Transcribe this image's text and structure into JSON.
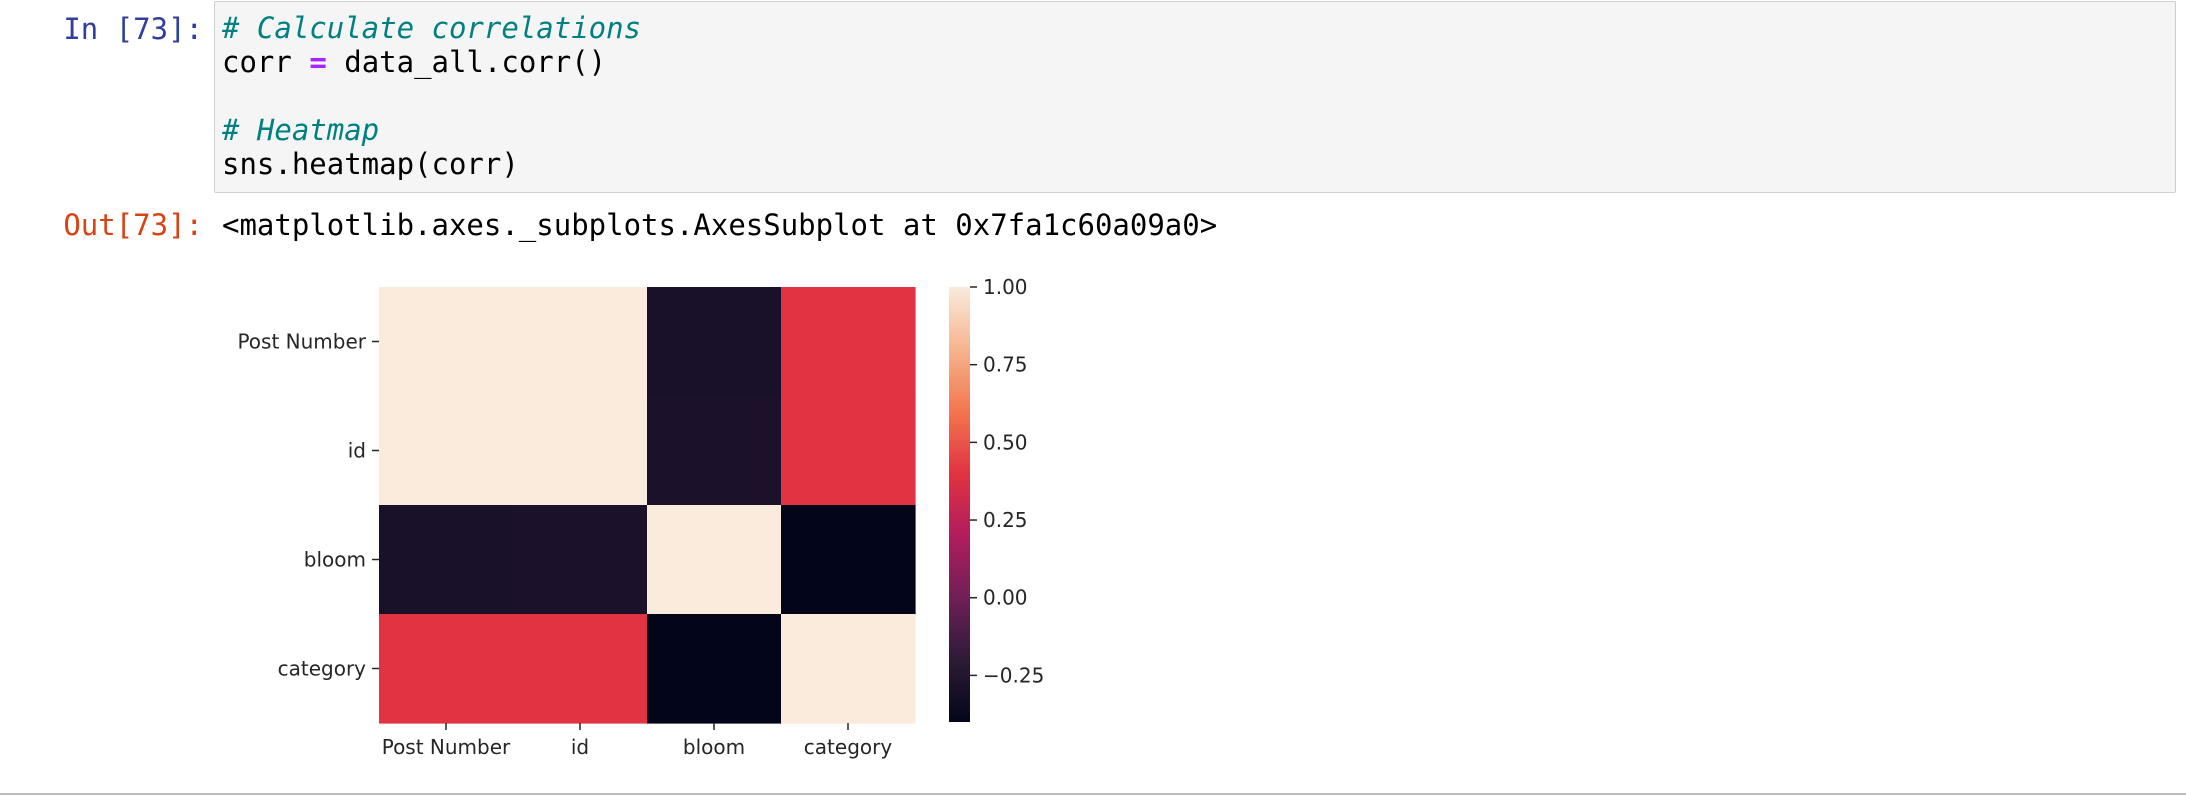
{
  "input_prompt": "In [73]:",
  "output_prompt": "Out[73]:",
  "code_lines": [
    {
      "parts": [
        {
          "text": "# Calculate correlations",
          "kind": "comment"
        }
      ]
    },
    {
      "parts": [
        {
          "text": "corr ",
          "kind": "plain"
        },
        {
          "text": "=",
          "kind": "op"
        },
        {
          "text": " data_all.corr()",
          "kind": "plain"
        }
      ]
    },
    {
      "parts": []
    },
    {
      "parts": [
        {
          "text": "# Heatmap",
          "kind": "comment"
        }
      ]
    },
    {
      "parts": [
        {
          "text": "sns.heatmap(corr)",
          "kind": "plain"
        }
      ]
    }
  ],
  "output_text": "<matplotlib.axes._subplots.AxesSubplot at 0x7fa1c60a09a0>",
  "chart_data": {
    "type": "heatmap",
    "rows": [
      "Post Number",
      "id",
      "bloom",
      "category"
    ],
    "cols": [
      "Post Number",
      "id",
      "bloom",
      "category"
    ],
    "values": [
      [
        1.0,
        1.0,
        -0.3,
        0.4
      ],
      [
        1.0,
        1.0,
        -0.29,
        0.4
      ],
      [
        -0.3,
        -0.29,
        1.0,
        -0.4
      ],
      [
        0.4,
        0.4,
        -0.4,
        1.0
      ]
    ],
    "vmin": -0.4,
    "vmax": 1.0,
    "colorbar_ticks": [
      1.0,
      0.75,
      0.5,
      0.25,
      0.0,
      -0.25
    ],
    "colorbar_tick_labels": [
      "1.00",
      "0.75",
      "0.50",
      "0.25",
      "0.00",
      "−0.25"
    ],
    "colormap": "rocket",
    "colormap_stops": [
      "#03051a",
      "#2e1a38",
      "#701f57",
      "#b11d5c",
      "#e13342",
      "#f3764f",
      "#f6b48f",
      "#faebdd"
    ]
  }
}
